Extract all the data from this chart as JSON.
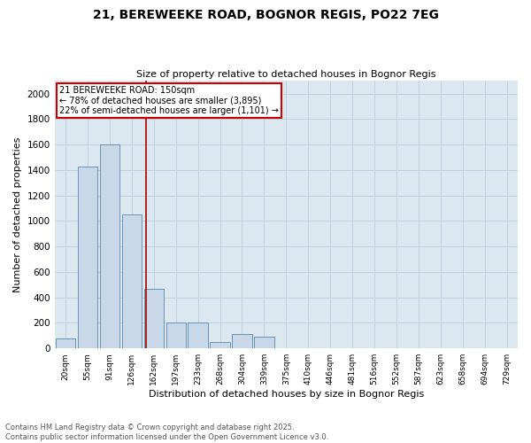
{
  "title1": "21, BEREWEEKE ROAD, BOGNOR REGIS, PO22 7EG",
  "title2": "Size of property relative to detached houses in Bognor Regis",
  "xlabel": "Distribution of detached houses by size in Bognor Regis",
  "ylabel": "Number of detached properties",
  "categories": [
    "20sqm",
    "55sqm",
    "91sqm",
    "126sqm",
    "162sqm",
    "197sqm",
    "233sqm",
    "268sqm",
    "304sqm",
    "339sqm",
    "375sqm",
    "410sqm",
    "446sqm",
    "481sqm",
    "516sqm",
    "552sqm",
    "587sqm",
    "623sqm",
    "658sqm",
    "694sqm",
    "729sqm"
  ],
  "values": [
    75,
    1430,
    1600,
    1050,
    470,
    200,
    200,
    50,
    110,
    90,
    0,
    0,
    0,
    0,
    0,
    0,
    0,
    0,
    0,
    0,
    0
  ],
  "bar_color": "#c8d8e8",
  "bar_edge_color": "#5588aa",
  "vline_color": "#aa0000",
  "annotation_title": "21 BEREWEEKE ROAD: 150sqm",
  "annotation_line1": "← 78% of detached houses are smaller (3,895)",
  "annotation_line2": "22% of semi-detached houses are larger (1,101) →",
  "annotation_box_color": "#cc0000",
  "ylim": [
    0,
    2100
  ],
  "yticks": [
    0,
    200,
    400,
    600,
    800,
    1000,
    1200,
    1400,
    1600,
    1800,
    2000
  ],
  "footer1": "Contains HM Land Registry data © Crown copyright and database right 2025.",
  "footer2": "Contains public sector information licensed under the Open Government Licence v3.0.",
  "grid_color": "#c0d0e0",
  "bg_color": "#dce8f0"
}
